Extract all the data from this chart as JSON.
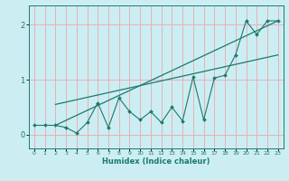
{
  "xlabel": "Humidex (Indice chaleur)",
  "bg_color": "#cceef2",
  "grid_color": "#e8b0b8",
  "line_color": "#1a7a6e",
  "xlim": [
    -0.5,
    23.5
  ],
  "ylim": [
    -0.25,
    2.35
  ],
  "xticks": [
    0,
    1,
    2,
    3,
    4,
    5,
    6,
    7,
    8,
    9,
    10,
    11,
    12,
    13,
    14,
    15,
    16,
    17,
    18,
    19,
    20,
    21,
    22,
    23
  ],
  "yticks": [
    0,
    1,
    2
  ],
  "data_x": [
    0,
    1,
    2,
    3,
    4,
    5,
    6,
    7,
    8,
    9,
    10,
    11,
    12,
    13,
    14,
    15,
    16,
    17,
    18,
    19,
    20,
    21,
    22,
    23
  ],
  "data_y": [
    0.17,
    0.17,
    0.17,
    0.13,
    0.03,
    0.22,
    0.58,
    0.13,
    0.67,
    0.42,
    0.27,
    0.42,
    0.22,
    0.5,
    0.25,
    1.05,
    0.27,
    1.03,
    1.08,
    1.45,
    2.07,
    1.82,
    2.07,
    2.07
  ],
  "trend1_x": [
    2,
    23
  ],
  "trend1_y": [
    0.55,
    1.45
  ],
  "trend2_x": [
    2,
    23
  ],
  "trend2_y": [
    0.17,
    2.07
  ]
}
